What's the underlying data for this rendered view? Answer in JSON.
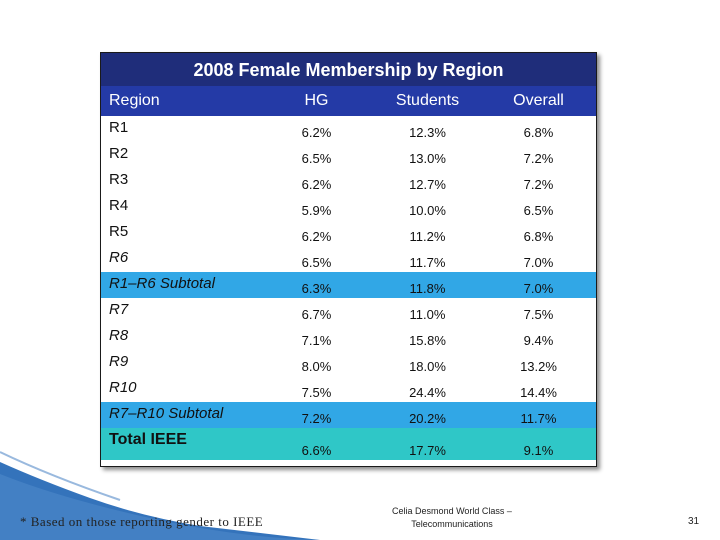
{
  "table": {
    "title": "2008 Female Membership by Region",
    "headers": [
      "Region",
      "HG",
      "Students",
      "Overall"
    ],
    "rows": [
      {
        "region": "R1",
        "hg": "6.2%",
        "students": "12.3%",
        "overall": "6.8%"
      },
      {
        "region": "R2",
        "hg": "6.5%",
        "students": "13.0%",
        "overall": "7.2%"
      },
      {
        "region": "R3",
        "hg": "6.2%",
        "students": "12.7%",
        "overall": "7.2%"
      },
      {
        "region": "R4",
        "hg": "5.9%",
        "students": "10.0%",
        "overall": "6.5%"
      },
      {
        "region": "R5",
        "hg": "6.2%",
        "students": "11.2%",
        "overall": "6.8%"
      },
      {
        "region": "R6",
        "hg": "6.5%",
        "students": "11.7%",
        "overall": "7.0%"
      },
      {
        "region": "R1–R6 Subtotal",
        "hg": "6.3%",
        "students": "11.8%",
        "overall": "7.0%"
      },
      {
        "region": "R7",
        "hg": "6.7%",
        "students": "11.0%",
        "overall": "7.5%"
      },
      {
        "region": "R8",
        "hg": "7.1%",
        "students": "15.8%",
        "overall": "9.4%"
      },
      {
        "region": "R9",
        "hg": "8.0%",
        "students": "18.0%",
        "overall": "13.2%"
      },
      {
        "region": "R10",
        "hg": "7.5%",
        "students": "24.4%",
        "overall": "14.4%"
      },
      {
        "region": "R7–R10 Subtotal",
        "hg": "7.2%",
        "students": "20.2%",
        "overall": "11.7%"
      },
      {
        "region": "Total IEEE",
        "hg": "6.6%",
        "students": "17.7%",
        "overall": "9.1%"
      }
    ]
  },
  "footnote": "* Based on those reporting gender to IEEE",
  "credit": {
    "line1": "Celia Desmond World Class –",
    "line2": "Telecommunications"
  },
  "slide_number": "31",
  "colors": {
    "title_bg": "#1f2d7a",
    "header_bg": "#243aa6",
    "subtotal_bg": "#31a7e6",
    "total_bg": "#2fc7c7",
    "corner_blue": "#1e64b4"
  }
}
